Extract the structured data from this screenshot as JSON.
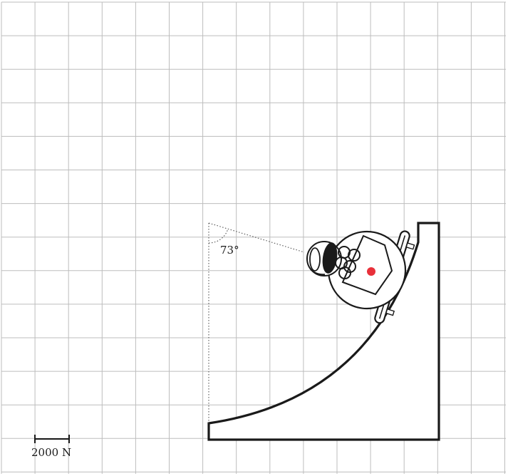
{
  "diagram": {
    "angle_label": "73°",
    "scale_label": "2000 N",
    "grid": true,
    "colors": {
      "grid": "#bdbdbd",
      "ink": "#1a1a1a",
      "center_of_mass": "#e8303a"
    }
  }
}
